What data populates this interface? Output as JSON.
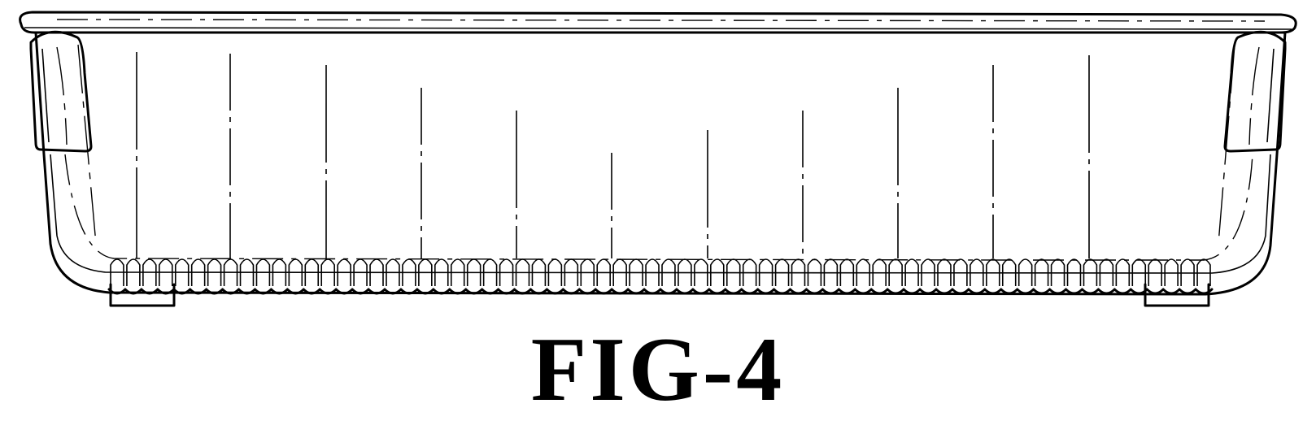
{
  "figure": {
    "label": "FIG-4",
    "subject": "baking-dish-side-elevation",
    "line_color": "#000000",
    "background_color": "#ffffff"
  }
}
